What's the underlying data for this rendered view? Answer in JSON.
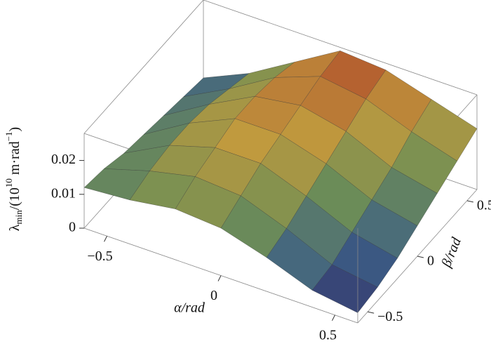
{
  "chart_data": {
    "type": "surface",
    "x_label": "α/rad",
    "y_label": "β/rad",
    "z_label": {
      "base": "λ",
      "sub": "min",
      "text1": "/(10",
      "sup1": "10",
      "text2": " m·rad",
      "sup2": "−1",
      "text3": ")"
    },
    "x": [
      -0.6,
      -0.4,
      -0.2,
      0,
      0.2,
      0.4,
      0.6
    ],
    "y": [
      -0.6,
      -0.4,
      -0.2,
      0,
      0.2,
      0.4,
      0.6
    ],
    "z": [
      [
        0.012,
        0.013,
        0.015,
        0.014,
        0.01,
        0.005,
        0.003
      ],
      [
        0.011,
        0.015,
        0.018,
        0.017,
        0.012,
        0.006,
        0.004
      ],
      [
        0.009,
        0.016,
        0.02,
        0.02,
        0.015,
        0.009,
        0.006
      ],
      [
        0.008,
        0.016,
        0.022,
        0.022,
        0.018,
        0.012,
        0.009
      ],
      [
        0.007,
        0.015,
        0.022,
        0.024,
        0.021,
        0.015,
        0.012
      ],
      [
        0.006,
        0.013,
        0.021,
        0.026,
        0.024,
        0.019,
        0.015
      ],
      [
        0.005,
        0.011,
        0.019,
        0.027,
        0.026,
        0.022,
        0.018
      ]
    ],
    "xlim": [
      -0.6,
      0.6
    ],
    "ylim": [
      -0.6,
      0.6
    ],
    "zlim": [
      0,
      0.028
    ],
    "xticks": [
      {
        "value": -0.5,
        "label": "−0.5"
      },
      0,
      0.5
    ],
    "yticks": [
      {
        "value": -0.5,
        "label": "−0.5"
      },
      0,
      0.5
    ],
    "zticks": [
      0,
      0.01,
      0.02
    ],
    "colormap": [
      "#2e1a5c",
      "#3d5f86",
      "#6f8f55",
      "#c09a3e",
      "#b0482a"
    ]
  }
}
